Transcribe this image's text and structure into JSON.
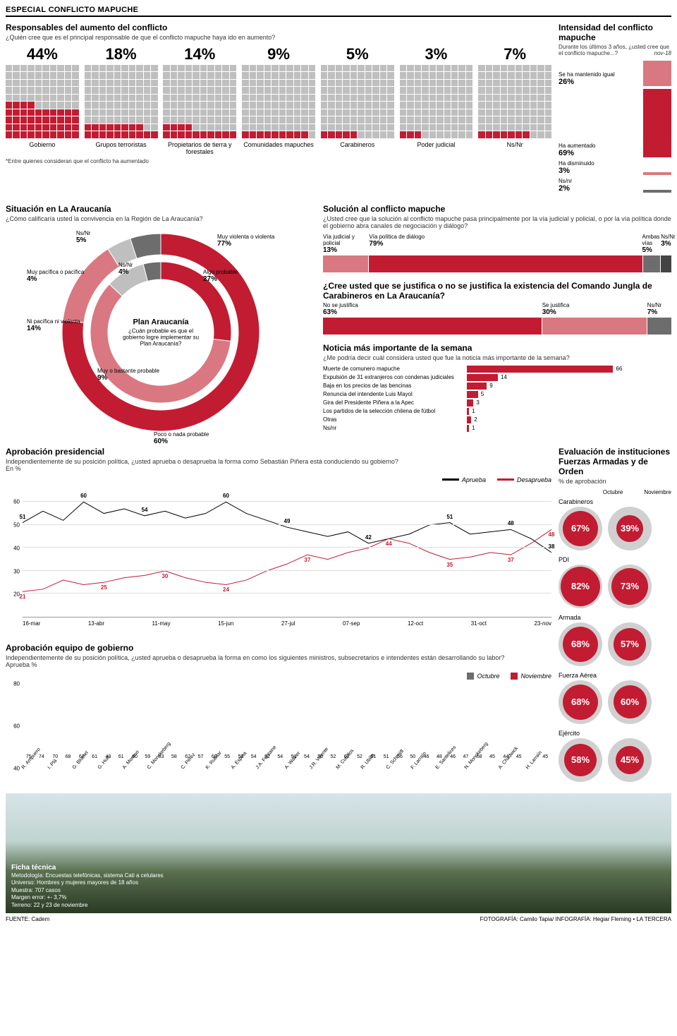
{
  "header": "ESPECIAL CONFLICTO MAPUCHE",
  "colors": {
    "red_dark": "#c21c32",
    "red_light": "#d97880",
    "grey": "#bfbfbf",
    "grey_dark": "#6d6d6d",
    "black": "#000000",
    "grid": "#dddddd",
    "bg": "#ffffff"
  },
  "responsables": {
    "title": "Responsables del aumento del conflicto",
    "subtitle": "¿Quién cree que es el principal responsable de que el conflicto mapuche haya ido en aumento?",
    "items": [
      {
        "label": "Gobierno",
        "pct": 44
      },
      {
        "label": "Grupos terroristas",
        "pct": 18
      },
      {
        "label": "Propietarios de tierra y forestales",
        "pct": 14
      },
      {
        "label": "Comunidades mapuches",
        "pct": 9
      },
      {
        "label": "Carabineros",
        "pct": 5
      },
      {
        "label": "Poder judicial",
        "pct": 3
      },
      {
        "label": "Ns/Nr",
        "pct": 7
      }
    ],
    "footnote": "*Entre quienes consideran que el conflicto ha aumentado"
  },
  "intensidad": {
    "title": "Intensidad del conflicto mapuche",
    "subtitle": "Durante los últimos 3 años, ¿usted cree que el conflicto mapuche...?",
    "date": "nov-18",
    "items": [
      {
        "label": "Se ha mantenido igual",
        "pct": 26,
        "color": "#d97880"
      },
      {
        "label": "Ha aumentado",
        "pct": 69,
        "color": "#c21c32"
      },
      {
        "label": "Ha disminuido",
        "pct": 3,
        "color": "#d97880"
      },
      {
        "label": "Ns/nr",
        "pct": 2,
        "color": "#6d6d6d"
      }
    ]
  },
  "situacion": {
    "title": "Situación en La Araucanía",
    "subtitle": "¿Cómo calificaría usted la convivencia en la Región de La Araucanía?",
    "outer": [
      {
        "label": "Muy violenta o violenta",
        "pct": 77,
        "color": "#c21c32"
      },
      {
        "label": "Ni pacífica ni violenta",
        "pct": 14,
        "color": "#d97880"
      },
      {
        "label": "Muy pacífica o pacífica",
        "pct": 4,
        "color": "#bfbfbf"
      },
      {
        "label": "Ns/Nr",
        "pct": 5,
        "color": "#6d6d6d"
      }
    ],
    "inner_title": "Plan Araucanía",
    "inner_subtitle": "¿Cuán probable es que el gobierno logre implementar su Plan Araucanía?",
    "inner": [
      {
        "label": "Algo probable",
        "pct": 27,
        "color": "#c21c32"
      },
      {
        "label": "Poco o nada probable",
        "pct": 60,
        "color": "#d97880"
      },
      {
        "label": "Muy o bastante probable",
        "pct": 9,
        "color": "#bfbfbf"
      },
      {
        "label": "Ns/Nr",
        "pct": 4,
        "color": "#6d6d6d"
      }
    ]
  },
  "solucion": {
    "title": "Solución al conflicto mapuche",
    "subtitle": "¿Usted cree que la solución al conflicto mapuche pasa principalmente por la vía judicial y policial, o por la vía política donde el gobierno abra canales de negociación y diálogo?",
    "segs": [
      {
        "label": "Vía judicial y policial",
        "pct": 13,
        "color": "#d97880"
      },
      {
        "label": "Vía política de diálogo",
        "pct": 79,
        "color": "#c21c32"
      },
      {
        "label": "Ambas vías",
        "pct": 5,
        "color": "#6d6d6d"
      },
      {
        "label": "Ns/Nr",
        "pct": 3,
        "color": "#444444"
      }
    ]
  },
  "jungla": {
    "title": "¿Cree usted que se justifica o no se justifica la existencia del Comando Jungla de Carabineros en La Araucanía?",
    "segs": [
      {
        "label": "No se justifica",
        "pct": 63,
        "color": "#c21c32"
      },
      {
        "label": "Se justifica",
        "pct": 30,
        "color": "#d97880"
      },
      {
        "label": "Ns/Nr",
        "pct": 7,
        "color": "#6d6d6d"
      }
    ]
  },
  "noticia": {
    "title": "Noticia más importante de la semana",
    "subtitle": "¿Me podría decir cuál considera usted que fue la noticia más importante de la semana?",
    "items": [
      {
        "label": "Muerte de comunero mapuche",
        "val": 66,
        "color": "#c21c32"
      },
      {
        "label": "Expulsión de 31 extranjeros con condenas judiciales",
        "val": 14,
        "color": "#c21c32"
      },
      {
        "label": "Baja en los precios de las bencinas",
        "val": 9,
        "color": "#c21c32"
      },
      {
        "label": "Renuncia del intendente Luis Mayol",
        "val": 5,
        "color": "#c21c32"
      },
      {
        "label": "Gira del Presidente Piñera a la Apec",
        "val": 3,
        "color": "#c21c32"
      },
      {
        "label": "Los partidos de la selección chilena de fútbol",
        "val": 1,
        "color": "#c21c32"
      },
      {
        "label": "Otras",
        "val": 2,
        "color": "#c21c32"
      },
      {
        "label": "Ns/nr",
        "val": 1,
        "color": "#c21c32"
      }
    ],
    "max": 70
  },
  "aprobacion": {
    "title": "Aprobación presidencial",
    "subtitle": "Independientemente de su posición política, ¿usted aprueba o desaprueba la forma como Sebastián Piñera está conduciendo su gobierno?",
    "unit": "En %",
    "legend": [
      {
        "label": "Aprueba",
        "color": "#000000"
      },
      {
        "label": "Desaprueba",
        "color": "#c21c32"
      }
    ],
    "ylim": [
      10,
      65
    ],
    "yticks": [
      20,
      30,
      40,
      50,
      60
    ],
    "xlabels": [
      "16-mar",
      "13-abr",
      "11-may",
      "15-jun",
      "27-jul",
      "07-sep",
      "12-oct",
      "31-oct",
      "23-nov"
    ],
    "aprueba": [
      51,
      56,
      52,
      60,
      55,
      57,
      54,
      56,
      53,
      55,
      60,
      55,
      52,
      49,
      47,
      45,
      47,
      42,
      44,
      46,
      50,
      51,
      46,
      47,
      48,
      44,
      38
    ],
    "desaprueba": [
      21,
      22,
      26,
      24,
      25,
      27,
      28,
      30,
      27,
      25,
      24,
      26,
      30,
      33,
      37,
      35,
      38,
      40,
      44,
      42,
      38,
      35,
      36,
      38,
      37,
      42,
      48
    ],
    "callouts_aprueba": [
      [
        0,
        51
      ],
      [
        3,
        60
      ],
      [
        6,
        54
      ],
      [
        10,
        60
      ],
      [
        13,
        49
      ],
      [
        17,
        42
      ],
      [
        21,
        51
      ],
      [
        24,
        48
      ],
      [
        26,
        38
      ]
    ],
    "callouts_desaprueba": [
      [
        0,
        21
      ],
      [
        4,
        25
      ],
      [
        7,
        30
      ],
      [
        10,
        24
      ],
      [
        14,
        37
      ],
      [
        18,
        44
      ],
      [
        21,
        35
      ],
      [
        24,
        37
      ],
      [
        26,
        48
      ]
    ]
  },
  "gobierno": {
    "title": "Aprobación equipo de gobierno",
    "subtitle": "Independientemente de su posición política, ¿usted aprueba o desaprueba la forma en como los siguientes ministros, subsecretarios e intendentes están desarrollando su labor?",
    "unit": "Aprueba %",
    "legend": [
      {
        "label": "Octubre",
        "color": "#6d6d6d"
      },
      {
        "label": "Noviembre",
        "color": "#c21c32"
      }
    ],
    "ylim": [
      40,
      80
    ],
    "yticks": [
      40,
      60,
      80
    ],
    "people": [
      {
        "name": "R. Ampuero",
        "oct": 75,
        "nov": 74
      },
      {
        "name": "I. Plá",
        "oct": 70,
        "nov": 68
      },
      {
        "name": "G. Blumel",
        "oct": 62,
        "nov": 61
      },
      {
        "name": "G. Hutt",
        "oct": 48,
        "nov": 61
      },
      {
        "name": "A. Moreno",
        "oct": 60,
        "nov": 59
      },
      {
        "name": "C. Monckeberg",
        "oct": 53,
        "nov": 58
      },
      {
        "name": "C. Pérez",
        "oct": 62,
        "nov": 57
      },
      {
        "name": "K. Rubilar",
        "oct": 60,
        "nov": 55
      },
      {
        "name": "A. Espina",
        "oct": 53,
        "nov": 54
      },
      {
        "name": "J.A. Fontaine",
        "oct": 52,
        "nov": 54
      },
      {
        "name": "A. Walker",
        "oct": 51,
        "nov": 54
      },
      {
        "name": "J.R. Valente",
        "oct": 50,
        "nov": 52
      },
      {
        "name": "M. Cubillos",
        "oct": 62,
        "nov": 52
      },
      {
        "name": "R. Ubilla",
        "oct": 51,
        "nov": 51
      },
      {
        "name": "C. Schmidt",
        "oct": 56,
        "nov": 50
      },
      {
        "name": "F. Larraín",
        "oct": 46,
        "nov": 48
      },
      {
        "name": "E. Santelices",
        "oct": 46,
        "nov": 47
      },
      {
        "name": "N. Monckeberg",
        "oct": 58,
        "nov": 45
      },
      {
        "name": "A. Chadwick",
        "oct": 44,
        "nov": 45
      },
      {
        "name": "H. Larraín",
        "oct": null,
        "nov": 45
      }
    ]
  },
  "instituciones": {
    "title": "Evaluación de instituciones Fuerzas Armadas y de Orden",
    "subtitle": "% de aprobación",
    "oct_label": "Octubre",
    "nov_label": "Noviembre",
    "items": [
      {
        "name": "Carabineros",
        "oct": 67,
        "nov": 39
      },
      {
        "name": "PDI",
        "oct": 82,
        "nov": 73
      },
      {
        "name": "Armada",
        "oct": 68,
        "nov": 57
      },
      {
        "name": "Fuerza Aérea",
        "oct": 68,
        "nov": 60
      },
      {
        "name": "Ejército",
        "oct": 58,
        "nov": 45
      }
    ]
  },
  "ficha": {
    "title": "Ficha técnica",
    "lines": [
      "Metodología: Encuestas telefónicas, sistema Cati a celulares",
      "Universo: Hombres y mujeres mayores de 18 años",
      "Muestra: 707 casos",
      "Margen error: +- 3,7%",
      "Terreno: 22 y 23 de noviembre"
    ]
  },
  "footer": {
    "left": "FUENTE: Cadem",
    "right": "FOTOGRAFÍA: Camilo Tapia/ INFOGRAFÍA: Hegiar Fleming • LA TERCERA"
  }
}
